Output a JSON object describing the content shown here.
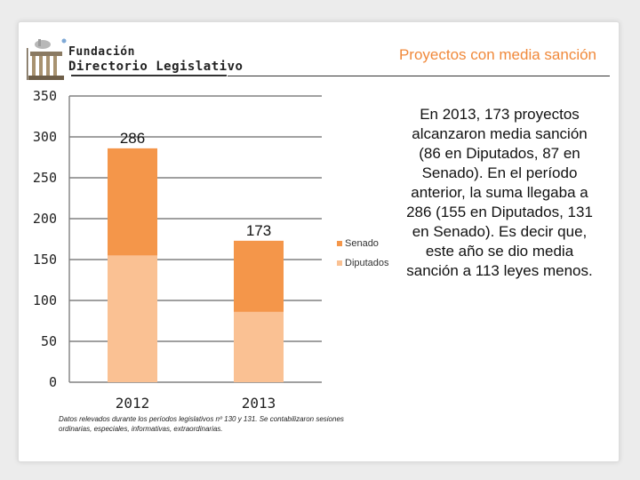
{
  "header": {
    "logo_line1": "Fundación",
    "logo_line2": "Directorio Legislativo",
    "title": "Proyectos con media sanción"
  },
  "colors": {
    "senado": "#f4964a",
    "diputados": "#fac193",
    "title": "#f0893b"
  },
  "chart_data": {
    "type": "bar",
    "stacked": true,
    "categories": [
      "2012",
      "2013"
    ],
    "series": [
      {
        "name": "Diputados",
        "values": [
          155,
          86
        ]
      },
      {
        "name": "Senado",
        "values": [
          131,
          87
        ]
      }
    ],
    "totals": [
      286,
      173
    ],
    "total_labels": [
      "286",
      "173"
    ],
    "ylim": [
      0,
      350
    ],
    "yticks": [
      0,
      50,
      100,
      150,
      200,
      250,
      300,
      350
    ],
    "ytick_labels": [
      "0",
      "50",
      "100",
      "150",
      "200",
      "250",
      "300",
      "350"
    ],
    "grid": true,
    "legend": [
      "Senado",
      "Diputados"
    ],
    "title": "Proyectos con media sanción",
    "xlabel": "",
    "ylabel": ""
  },
  "note": "Datos relevados durante los períodos legislativos nº 130 y 131. Se contabilizaron sesiones ordinarias, especiales, informativas, extraordinarias.",
  "description": "En 2013, 173 proyectos alcanzaron media sanción (86 en Diputados, 87 en Senado). En el período anterior, la suma llegaba a 286 (155 en Diputados, 131 en Senado). Es decir que, este año se dio media sanción a 113 leyes menos."
}
